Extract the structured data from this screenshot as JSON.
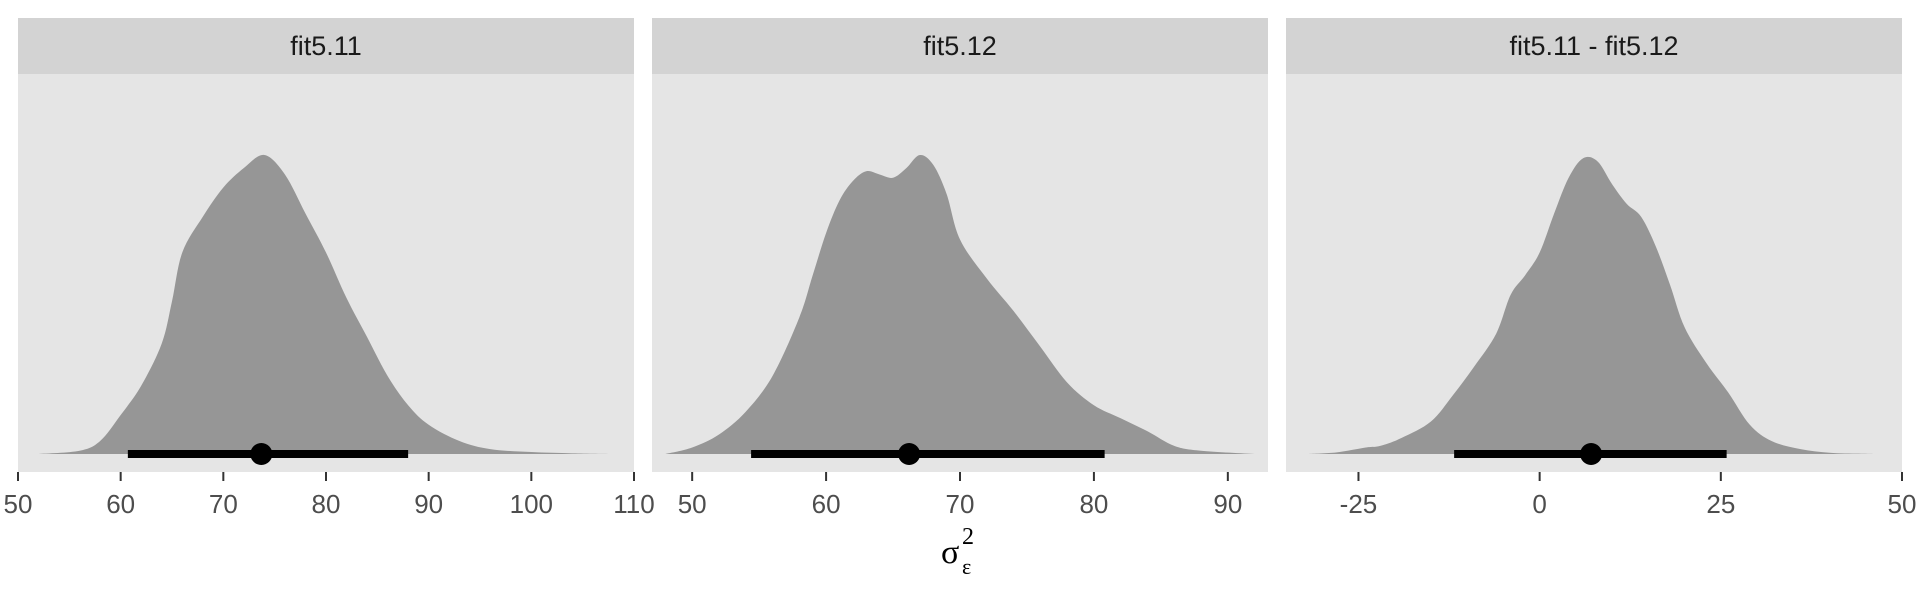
{
  "chart_data": {
    "type": "area",
    "description_type": "density with point interval (halfeye), faceted",
    "colors": {
      "panel_background": "#e5e5e5",
      "strip_background": "#d3d3d3",
      "density_fill": "#969696",
      "interval": "#000000"
    },
    "x_axis_title": {
      "symbol": "σ",
      "superscript": "2",
      "subscript": "ε"
    },
    "panels": [
      {
        "title": "fit5.11",
        "xlim": [
          50,
          110
        ],
        "ticks": [
          50,
          60,
          70,
          80,
          90,
          100,
          110
        ],
        "tick_labels": [
          "50",
          "60",
          "70",
          "80",
          "90",
          "100",
          "110"
        ],
        "density": {
          "x": [
            52,
            56,
            58,
            60,
            62,
            64,
            65,
            66,
            68,
            70,
            72,
            74,
            76,
            78,
            80,
            82,
            84,
            86,
            88,
            90,
            93,
            96,
            100,
            104,
            108
          ],
          "y": [
            0,
            0.01,
            0.04,
            0.12,
            0.21,
            0.34,
            0.47,
            0.62,
            0.73,
            0.82,
            0.88,
            0.92,
            0.86,
            0.74,
            0.62,
            0.48,
            0.36,
            0.24,
            0.15,
            0.09,
            0.04,
            0.015,
            0.006,
            0.002,
            0
          ]
        },
        "interval": {
          "lower": 60.7,
          "upper": 88.0
        },
        "point": 73.7
      },
      {
        "title": "fit5.12",
        "xlim": [
          47,
          93
        ],
        "ticks": [
          50,
          60,
          70,
          80,
          90
        ],
        "tick_labels": [
          "50",
          "60",
          "70",
          "80",
          "90"
        ],
        "density": {
          "x": [
            48,
            50,
            52,
            54,
            56,
            58,
            59,
            60,
            61,
            62,
            63,
            64,
            65,
            66,
            67,
            68,
            69,
            70,
            72,
            74,
            76,
            78,
            80,
            82,
            84,
            86,
            88,
            92
          ],
          "y": [
            0,
            0.02,
            0.06,
            0.13,
            0.24,
            0.42,
            0.55,
            0.68,
            0.78,
            0.84,
            0.87,
            0.86,
            0.85,
            0.88,
            0.92,
            0.89,
            0.8,
            0.66,
            0.54,
            0.44,
            0.33,
            0.22,
            0.15,
            0.11,
            0.07,
            0.025,
            0.01,
            0
          ]
        },
        "interval": {
          "lower": 54.4,
          "upper": 80.8
        },
        "point": 66.2
      },
      {
        "title": "fit5.11 - fit5.12",
        "xlim": [
          -35,
          50
        ],
        "ticks": [
          -25,
          0,
          25,
          50
        ],
        "tick_labels": [
          "-25",
          "0",
          "25",
          "50"
        ],
        "density": {
          "x": [
            -32,
            -28,
            -24,
            -22,
            -19,
            -15,
            -12,
            -9,
            -6,
            -4,
            -2,
            0,
            2,
            4,
            6,
            8,
            10,
            12,
            14,
            16,
            18,
            20,
            23,
            26,
            29,
            32,
            36,
            40,
            44,
            46
          ],
          "y": [
            0,
            0.005,
            0.02,
            0.025,
            0.05,
            0.1,
            0.18,
            0.27,
            0.37,
            0.49,
            0.55,
            0.62,
            0.74,
            0.85,
            0.91,
            0.9,
            0.83,
            0.77,
            0.73,
            0.64,
            0.52,
            0.39,
            0.28,
            0.19,
            0.09,
            0.04,
            0.015,
            0.004,
            0.001,
            0
          ]
        },
        "interval": {
          "lower": -11.8,
          "upper": 25.8
        },
        "point": 7.1
      }
    ]
  }
}
